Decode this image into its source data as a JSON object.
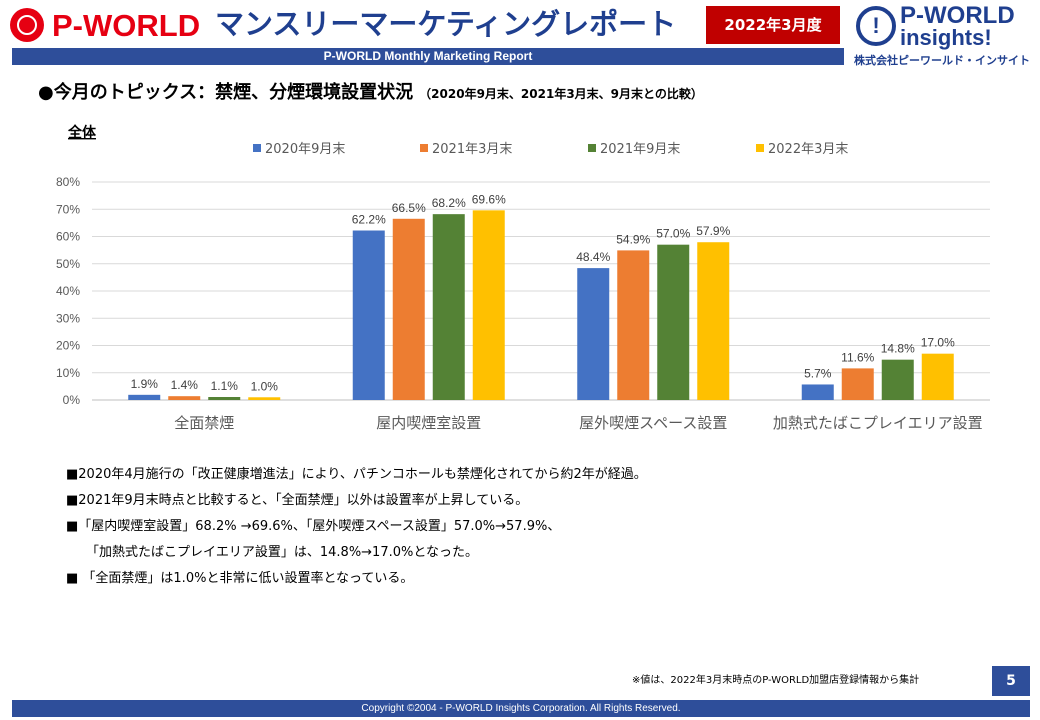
{
  "header": {
    "logo_left_text": "P-WORLD",
    "title": "マンスリーマーケティングレポート",
    "month_badge": "2022年3月度",
    "subtitle_bar": "P-WORLD Monthly Marketing Report",
    "logo_right": {
      "mark": "!",
      "line1": "P-WORLD",
      "line2": "insights!",
      "company": "株式会社ピーワールド・インサイト"
    }
  },
  "topic": {
    "main": "●今月のトピックス：禁煙、分煙環境設置状況",
    "sub": "（2020年9月末、2021年3月末、9月末との比較）"
  },
  "chart_data": {
    "type": "bar",
    "title": "全体",
    "categories": [
      "全面禁煙",
      "屋内喫煙室設置",
      "屋外喫煙スペース設置",
      "加熱式たばこプレイエリア設置"
    ],
    "series": [
      {
        "name": "2020年9月末",
        "color": "#4472c4",
        "values": [
          1.9,
          62.2,
          48.4,
          5.7
        ],
        "labels": [
          "1.9%",
          "62.2%",
          "48.4%",
          "5.7%"
        ]
      },
      {
        "name": "2021年3月末",
        "color": "#ed7d31",
        "values": [
          1.4,
          66.5,
          54.9,
          11.6
        ],
        "labels": [
          "1.4%",
          "66.5%",
          "54.9%",
          "11.6%"
        ]
      },
      {
        "name": "2021年9月末",
        "color": "#548235",
        "values": [
          1.1,
          68.2,
          57.0,
          14.8
        ],
        "labels": [
          "1.1%",
          "68.2%",
          "57.0%",
          "14.8%"
        ]
      },
      {
        "name": "2022年3月末",
        "color": "#ffc000",
        "values": [
          1.0,
          69.6,
          57.9,
          17.0
        ],
        "labels": [
          "1.0%",
          "69.6%",
          "57.9%",
          "17.0%"
        ]
      }
    ],
    "ylim": [
      0,
      80
    ],
    "yticks": [
      "0%",
      "10%",
      "20%",
      "30%",
      "40%",
      "50%",
      "60%",
      "70%",
      "80%"
    ],
    "grid": true,
    "legend_position": "top"
  },
  "notes": {
    "line1": "■2020年4月施行の「改正健康増進法」により、パチンコホールも禁煙化されてから約2年が経過。",
    "line2": "■2021年9月末時点と比較すると、「全面禁煙」以外は設置率が上昇している。",
    "line3": "■「屋内喫煙室設置」68.2% →69.6%、「屋外喫煙スペース設置」57.0%→57.9%、",
    "line4": "「加熱式たばこプレイエリア設置」は、14.8%→17.0%となった。",
    "line5": "■ 「全面禁煙」は1.0%と非常に低い設置率となっている。"
  },
  "footnote": "※値は、2022年3月末時点のP-WORLD加盟店登録情報から集計",
  "page_number": "5",
  "footer": "Copyright ©2004 -  P-WORLD Insights Corporation. All Rights Reserved."
}
